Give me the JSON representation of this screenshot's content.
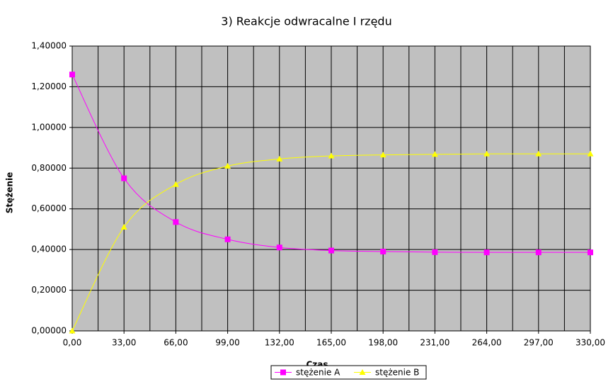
{
  "chart_data": {
    "type": "line",
    "title": "3) Reakcje odwracalne I rzędu",
    "x_label": "Czas",
    "y_label": "Stężenie",
    "x": [
      0,
      33,
      66,
      99,
      132,
      165,
      198,
      231,
      264,
      297,
      330
    ],
    "series": [
      {
        "name": "stężenie A",
        "color": "#ff00ff",
        "marker": "square",
        "values": [
          1.26,
          0.75,
          0.535,
          0.45,
          0.41,
          0.395,
          0.39,
          0.387,
          0.386,
          0.386,
          0.386
        ]
      },
      {
        "name": "stężenie B",
        "color": "#ffff00",
        "marker": "triangle",
        "values": [
          0,
          0.51,
          0.72,
          0.81,
          0.845,
          0.86,
          0.865,
          0.868,
          0.87,
          0.87,
          0.87
        ]
      }
    ],
    "xlim": [
      0,
      330
    ],
    "xticks": [
      {
        "value": 0,
        "label": "0,00"
      },
      {
        "value": 33,
        "label": "33,00"
      },
      {
        "value": 66,
        "label": "66,00"
      },
      {
        "value": 99,
        "label": "99,00"
      },
      {
        "value": 132,
        "label": "132,00"
      },
      {
        "value": 165,
        "label": "165,00"
      },
      {
        "value": 198,
        "label": "198,00"
      },
      {
        "value": 231,
        "label": "231,00"
      },
      {
        "value": 264,
        "label": "264,00"
      },
      {
        "value": 297,
        "label": "297,00"
      },
      {
        "value": 330,
        "label": "330,00"
      }
    ],
    "ylim": [
      0,
      1.4
    ],
    "yticks": [
      {
        "value": 0,
        "label": "0,00000"
      },
      {
        "value": 0.2,
        "label": "0,20000"
      },
      {
        "value": 0.4,
        "label": "0,40000"
      },
      {
        "value": 0.6,
        "label": "0,60000"
      },
      {
        "value": 0.8,
        "label": "0,80000"
      },
      {
        "value": 1,
        "label": "1,00000"
      },
      {
        "value": 1.2,
        "label": "1,20000"
      },
      {
        "value": 1.4,
        "label": "1,40000"
      }
    ],
    "grid": true,
    "plot_background": "#c0c0c0",
    "legend_position": "bottom"
  }
}
